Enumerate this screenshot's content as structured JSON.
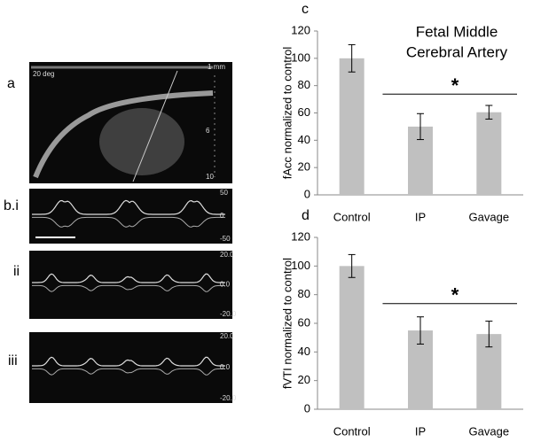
{
  "figure": {
    "labels": [
      "a",
      "b.i",
      "ii",
      "iii"
    ],
    "image_a": [
      "20 deg",
      "1 mm",
      "6",
      "10"
    ],
    "image_bi": [
      "50",
      "0",
      "-50"
    ],
    "image_ii": [
      "20.0",
      "0.0",
      "-20.0"
    ],
    "image_iii": [
      "20.0",
      "0.0",
      "-20.0"
    ]
  },
  "chart_data": [
    {
      "type": "bar",
      "panel_label": "c",
      "title": [
        "Fetal Middle",
        "Cerebral Artery"
      ],
      "ylabel": "fAcc normalized to control",
      "categories": [
        "Control",
        "IP",
        "Gavage"
      ],
      "series": [
        {
          "color": "#c0c0c0",
          "values": [
            100,
            50,
            60.5
          ],
          "errors": [
            10,
            9.5,
            5
          ]
        }
      ],
      "ylim": [
        0,
        120
      ],
      "yticks": [
        0,
        20,
        40,
        60,
        80,
        100,
        120
      ],
      "annotation": "*"
    },
    {
      "type": "bar",
      "panel_label": "d",
      "ylabel": "fVTI normalized to control",
      "categories": [
        "Control",
        "IP",
        "Gavage"
      ],
      "series": [
        {
          "color": "#c0c0c0",
          "values": [
            100,
            55,
            52.5
          ],
          "errors": [
            8,
            9.5,
            9
          ]
        }
      ],
      "ylim": [
        0,
        120
      ],
      "yticks": [
        0,
        20,
        40,
        60,
        80,
        100,
        120
      ],
      "annotation": "*"
    }
  ]
}
